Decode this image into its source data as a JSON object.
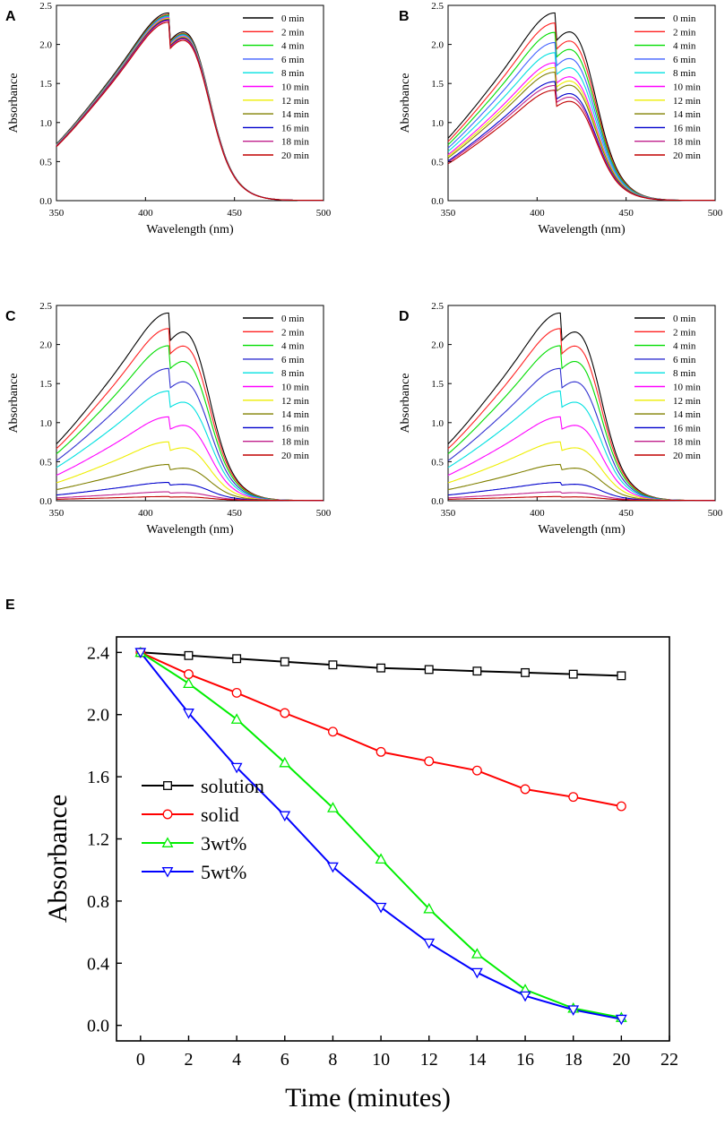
{
  "figure": {
    "panel_letters": [
      "A",
      "B",
      "C",
      "D",
      "E"
    ]
  },
  "chart_data": [
    {
      "panel": "A",
      "type": "line",
      "title": "",
      "xlabel": "Wavelength (nm)",
      "ylabel": "Absorbance",
      "xlim": [
        350,
        500
      ],
      "ylim": [
        0,
        2.5
      ],
      "xticks": [
        350,
        400,
        450,
        500
      ],
      "yticks": [
        0.0,
        0.5,
        1.0,
        1.5,
        2.0,
        2.5
      ],
      "ytick_labels": [
        "0.0",
        "0.5",
        "1.0",
        "1.5",
        "2.0",
        "2.5"
      ],
      "peak_wavelength": 413,
      "legend_position": "top-right",
      "series": [
        {
          "name": "0 min",
          "color": "#000000",
          "peak": 2.4
        },
        {
          "name": "2 min",
          "color": "#ff2020",
          "peak": 2.38
        },
        {
          "name": "4 min",
          "color": "#00dd00",
          "peak": 2.37
        },
        {
          "name": "6 min",
          "color": "#4060ff",
          "peak": 2.36
        },
        {
          "name": "8 min",
          "color": "#00e0e0",
          "peak": 2.35
        },
        {
          "name": "10 min",
          "color": "#ff00ff",
          "peak": 2.34
        },
        {
          "name": "12 min",
          "color": "#eeee00",
          "peak": 2.33
        },
        {
          "name": "14 min",
          "color": "#808000",
          "peak": 2.32
        },
        {
          "name": "16 min",
          "color": "#0000cc",
          "peak": 2.31
        },
        {
          "name": "18 min",
          "color": "#c0208c",
          "peak": 2.3
        },
        {
          "name": "20 min",
          "color": "#c00000",
          "peak": 2.28
        }
      ]
    },
    {
      "panel": "B",
      "type": "line",
      "title": "",
      "xlabel": "Wavelength (nm)",
      "ylabel": "Absorbance",
      "xlim": [
        350,
        500
      ],
      "ylim": [
        0,
        2.5
      ],
      "xticks": [
        350,
        400,
        450,
        500
      ],
      "yticks": [
        0.0,
        0.5,
        1.0,
        1.5,
        2.0,
        2.5
      ],
      "ytick_labels": [
        "0.0",
        "0.5",
        "1.0",
        "1.5",
        "2.0",
        "2.5"
      ],
      "peak_wavelength": 410,
      "legend_position": "top-right",
      "series": [
        {
          "name": "0 min",
          "color": "#000000",
          "peak": 2.4
        },
        {
          "name": "2 min",
          "color": "#ff2020",
          "peak": 2.27
        },
        {
          "name": "4 min",
          "color": "#00dd00",
          "peak": 2.15
        },
        {
          "name": "6 min",
          "color": "#4060ff",
          "peak": 2.02
        },
        {
          "name": "8 min",
          "color": "#00e0e0",
          "peak": 1.89
        },
        {
          "name": "10 min",
          "color": "#ff00ff",
          "peak": 1.76
        },
        {
          "name": "12 min",
          "color": "#eeee00",
          "peak": 1.7
        },
        {
          "name": "14 min",
          "color": "#808000",
          "peak": 1.64
        },
        {
          "name": "16 min",
          "color": "#0000cc",
          "peak": 1.52
        },
        {
          "name": "18 min",
          "color": "#c0208c",
          "peak": 1.47
        },
        {
          "name": "20 min",
          "color": "#c00000",
          "peak": 1.41
        }
      ]
    },
    {
      "panel": "C",
      "type": "line",
      "title": "",
      "xlabel": "Wavelength (nm)",
      "ylabel": "Absorbance",
      "xlim": [
        350,
        500
      ],
      "ylim": [
        0,
        2.5
      ],
      "xticks": [
        350,
        400,
        450,
        500
      ],
      "yticks": [
        0.0,
        0.5,
        1.0,
        1.5,
        2.0,
        2.5
      ],
      "ytick_labels": [
        "0.0",
        "0.5",
        "1.0",
        "1.5",
        "2.0",
        "2.5"
      ],
      "peak_wavelength": 413,
      "legend_position": "top-right",
      "series": [
        {
          "name": "0 min",
          "color": "#000000",
          "peak": 2.4
        },
        {
          "name": "2 min",
          "color": "#ff2020",
          "peak": 2.2
        },
        {
          "name": "4 min",
          "color": "#00dd00",
          "peak": 1.98
        },
        {
          "name": "6 min",
          "color": "#3030d0",
          "peak": 1.69
        },
        {
          "name": "8 min",
          "color": "#00e0e0",
          "peak": 1.4
        },
        {
          "name": "10 min",
          "color": "#ff00ff",
          "peak": 1.07
        },
        {
          "name": "12 min",
          "color": "#eeee00",
          "peak": 0.75
        },
        {
          "name": "14 min",
          "color": "#808000",
          "peak": 0.46
        },
        {
          "name": "16 min",
          "color": "#0000cc",
          "peak": 0.23
        },
        {
          "name": "18 min",
          "color": "#c0208c",
          "peak": 0.11
        },
        {
          "name": "20 min",
          "color": "#c00000",
          "peak": 0.05
        }
      ]
    },
    {
      "panel": "D",
      "type": "line",
      "title": "",
      "xlabel": "Wavelength (nm)",
      "ylabel": "Absorbance",
      "xlim": [
        350,
        500
      ],
      "ylim": [
        0,
        2.5
      ],
      "xticks": [
        350,
        400,
        450,
        500
      ],
      "yticks": [
        0.0,
        0.5,
        1.0,
        1.5,
        2.0,
        2.5
      ],
      "ytick_labels": [
        "0.0",
        "0.5",
        "1.0",
        "1.5",
        "2.0",
        "2.5"
      ],
      "peak_wavelength": 413,
      "legend_position": "top-right",
      "series": [
        {
          "name": "0 min",
          "color": "#000000",
          "peak": 2.4
        },
        {
          "name": "2 min",
          "color": "#ff2020",
          "peak": 2.2
        },
        {
          "name": "4 min",
          "color": "#00dd00",
          "peak": 1.98
        },
        {
          "name": "6 min",
          "color": "#3030d0",
          "peak": 1.69
        },
        {
          "name": "8 min",
          "color": "#00e0e0",
          "peak": 1.4
        },
        {
          "name": "10 min",
          "color": "#ff00ff",
          "peak": 1.07
        },
        {
          "name": "12 min",
          "color": "#eeee00",
          "peak": 0.75
        },
        {
          "name": "14 min",
          "color": "#808000",
          "peak": 0.46
        },
        {
          "name": "16 min",
          "color": "#0000cc",
          "peak": 0.23
        },
        {
          "name": "18 min",
          "color": "#c0208c",
          "peak": 0.11
        },
        {
          "name": "20 min",
          "color": "#c00000",
          "peak": 0.05
        }
      ]
    },
    {
      "panel": "E",
      "type": "line",
      "title": "",
      "xlabel": "Time (minutes)",
      "ylabel": "Absorbance",
      "xlim": [
        -1,
        22
      ],
      "ylim": [
        -0.1,
        2.5
      ],
      "xticks": [
        0,
        2,
        4,
        6,
        8,
        10,
        12,
        14,
        16,
        18,
        20,
        22
      ],
      "yticks": [
        0.0,
        0.4,
        0.8,
        1.2,
        1.6,
        2.0,
        2.4
      ],
      "ytick_labels": [
        "0.0",
        "0.4",
        "0.8",
        "1.2",
        "1.6",
        "2.0",
        "2.4"
      ],
      "legend_position": "bottom-left",
      "x": [
        0,
        2,
        4,
        6,
        8,
        10,
        12,
        14,
        16,
        18,
        20
      ],
      "series": [
        {
          "name": "solution",
          "color": "#000000",
          "marker": "square",
          "values": [
            2.4,
            2.38,
            2.36,
            2.34,
            2.32,
            2.3,
            2.29,
            2.28,
            2.27,
            2.26,
            2.25
          ]
        },
        {
          "name": "solid",
          "color": "#ff0000",
          "marker": "circle",
          "values": [
            2.4,
            2.26,
            2.14,
            2.01,
            1.89,
            1.76,
            1.7,
            1.64,
            1.52,
            1.47,
            1.41
          ]
        },
        {
          "name": "3wt%",
          "color": "#00ee00",
          "marker": "triangle-up",
          "values": [
            2.4,
            2.2,
            1.97,
            1.69,
            1.4,
            1.07,
            0.75,
            0.46,
            0.23,
            0.11,
            0.05
          ]
        },
        {
          "name": "5wt%",
          "color": "#0000ff",
          "marker": "triangle-down",
          "values": [
            2.4,
            2.01,
            1.66,
            1.35,
            1.02,
            0.76,
            0.53,
            0.34,
            0.19,
            0.1,
            0.04
          ]
        }
      ]
    }
  ]
}
